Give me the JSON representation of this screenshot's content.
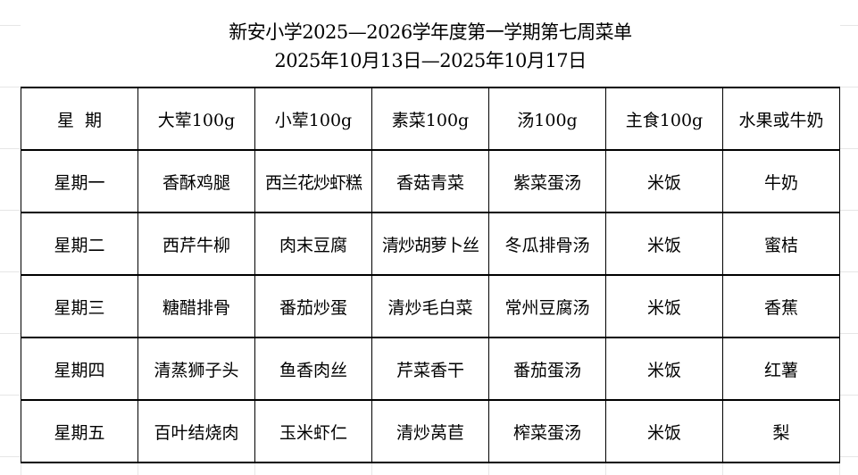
{
  "title": "新安小学2025—2026学年度第一学期第七周菜单",
  "date_range": "2025年10月13日—2025年10月17日",
  "headers": [
    "星  期",
    "大荤100g",
    "小荤100g",
    "素菜100g",
    "汤100g",
    "主食100g",
    "水果或牛奶"
  ],
  "rows": [
    [
      "星期一",
      "香酥鸡腿",
      "西兰花炒虾糕",
      "香菇青菜",
      "紫菜蛋汤",
      "米饭",
      "牛奶"
    ],
    [
      "星期二",
      "西芹牛柳",
      "肉末豆腐",
      "清炒胡萝卜丝",
      "冬瓜排骨汤",
      "米饭",
      "蜜桔"
    ],
    [
      "星期三",
      "糖醋排骨",
      "番茄炒蛋",
      "清炒毛白菜",
      "常州豆腐汤",
      "米饭",
      "香蕉"
    ],
    [
      "星期四",
      "清蒸狮子头",
      "鱼香肉丝",
      "芹菜香干",
      "番茄蛋汤",
      "米饭",
      "红薯"
    ],
    [
      "星期五",
      "百叶结烧肉",
      "玉米虾仁",
      "清炒莴苣",
      "榨菜蛋汤",
      "米饭",
      "梨"
    ]
  ]
}
